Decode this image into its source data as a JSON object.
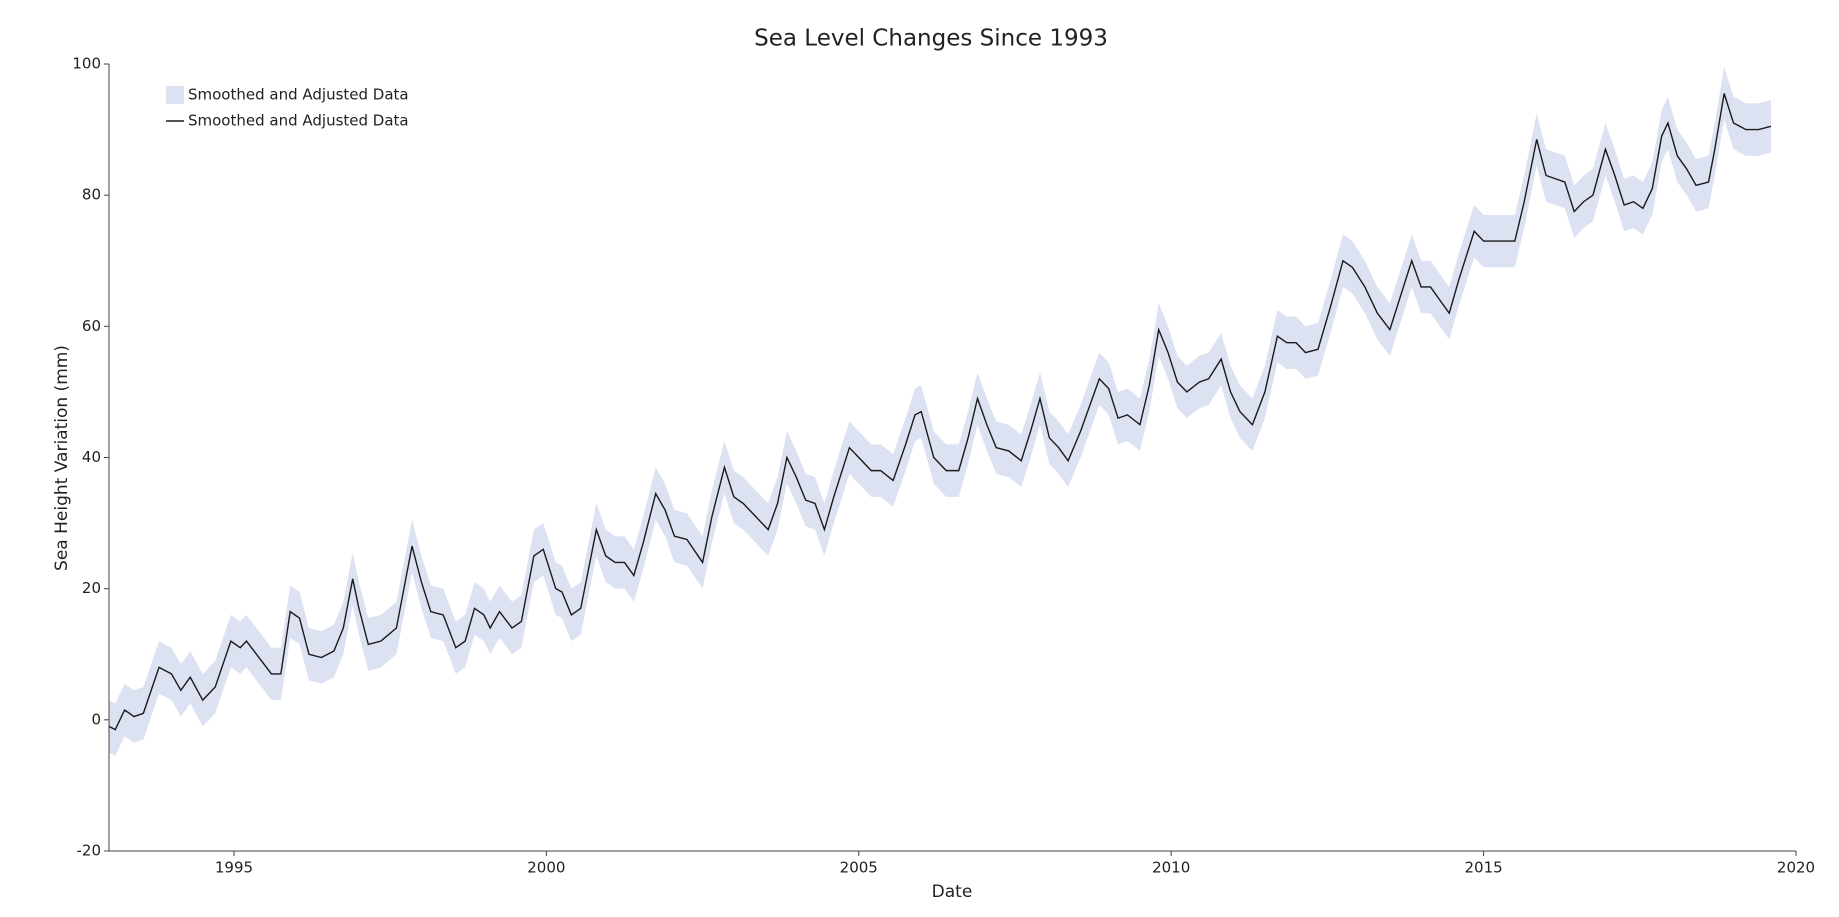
{
  "chart_data": {
    "type": "line",
    "title": "Sea Level Changes Since 1993",
    "x_label": "Date",
    "y_label": "Sea Height Variation (mm)",
    "xlim": [
      1993,
      2020
    ],
    "xticks": [
      1995,
      2000,
      2005,
      2010,
      2015,
      2020
    ],
    "ylim": [
      -20,
      100
    ],
    "yticks": [
      -20,
      0,
      20,
      40,
      60,
      80,
      100
    ],
    "legend": "upper-left",
    "grid": false,
    "x": [
      1993.0,
      1993.1,
      1993.25,
      1993.4,
      1993.55,
      1993.8,
      1994.0,
      1994.15,
      1994.3,
      1994.5,
      1994.7,
      1994.95,
      1995.1,
      1995.2,
      1995.4,
      1995.6,
      1995.75,
      1995.9,
      1996.05,
      1996.2,
      1996.4,
      1996.6,
      1996.75,
      1996.9,
      1997.0,
      1997.15,
      1997.35,
      1997.6,
      1997.85,
      1998.0,
      1998.15,
      1998.35,
      1998.55,
      1998.7,
      1998.85,
      1999.0,
      1999.1,
      1999.25,
      1999.45,
      1999.6,
      1999.8,
      1999.95,
      2000.15,
      2000.25,
      2000.4,
      2000.55,
      2000.8,
      2000.95,
      2001.1,
      2001.25,
      2001.4,
      2001.55,
      2001.75,
      2001.9,
      2002.05,
      2002.25,
      2002.5,
      2002.65,
      2002.85,
      2003.0,
      2003.15,
      2003.35,
      2003.55,
      2003.7,
      2003.85,
      2004.0,
      2004.15,
      2004.3,
      2004.45,
      2004.6,
      2004.85,
      2005.0,
      2005.2,
      2005.35,
      2005.55,
      2005.75,
      2005.9,
      2006.0,
      2006.2,
      2006.4,
      2006.6,
      2006.75,
      2006.9,
      2007.05,
      2007.2,
      2007.4,
      2007.6,
      2007.75,
      2007.9,
      2008.05,
      2008.2,
      2008.35,
      2008.55,
      2008.7,
      2008.85,
      2009.0,
      2009.15,
      2009.3,
      2009.5,
      2009.65,
      2009.8,
      2009.95,
      2010.1,
      2010.25,
      2010.45,
      2010.6,
      2010.8,
      2010.95,
      2011.1,
      2011.3,
      2011.5,
      2011.7,
      2011.85,
      2012.0,
      2012.15,
      2012.35,
      2012.55,
      2012.75,
      2012.9,
      2013.1,
      2013.3,
      2013.5,
      2013.65,
      2013.85,
      2014.0,
      2014.15,
      2014.3,
      2014.45,
      2014.6,
      2014.85,
      2015.0,
      2015.15,
      2015.3,
      2015.5,
      2015.65,
      2015.85,
      2016.0,
      2016.15,
      2016.3,
      2016.45,
      2016.6,
      2016.75,
      2016.95,
      2017.1,
      2017.25,
      2017.4,
      2017.55,
      2017.7,
      2017.85,
      2017.95,
      2018.1,
      2018.25,
      2018.4,
      2018.6,
      2018.7,
      2018.85,
      2019.0,
      2019.2,
      2019.4,
      2019.6
    ],
    "series": [
      {
        "name": "Smoothed and Adjusted Data",
        "color": "#dde2f2",
        "lower": [
          -5,
          -5.5,
          -2.5,
          -3.5,
          -3,
          4,
          3,
          0.5,
          2.5,
          -1,
          1,
          8,
          7,
          8,
          5.5,
          3,
          3,
          12.5,
          11.5,
          6,
          5.5,
          6.5,
          10,
          17.5,
          13,
          7.5,
          8,
          10,
          22.5,
          17,
          12.5,
          12,
          7,
          8,
          13,
          12,
          10,
          12.5,
          10,
          11,
          21,
          22,
          16,
          15.5,
          12,
          13,
          25,
          21,
          20,
          20,
          18,
          23,
          30.5,
          28,
          24,
          23.5,
          20,
          27,
          34.5,
          30,
          29,
          27,
          25,
          29,
          36,
          33,
          29.5,
          29,
          25,
          30,
          37.5,
          36,
          34,
          34,
          32.5,
          38,
          42.5,
          43,
          36,
          34,
          34,
          39,
          45,
          41,
          37.5,
          37,
          35.5,
          40,
          45,
          39,
          37.5,
          35.5,
          40,
          44,
          48,
          46.5,
          42,
          42.5,
          41,
          47,
          55.5,
          52,
          47.5,
          46,
          47.5,
          48,
          51,
          46,
          43,
          41,
          46,
          54.5,
          53.5,
          53.5,
          52,
          52.5,
          59,
          66,
          65,
          62,
          58,
          55.5,
          60,
          66,
          62,
          62,
          60,
          58,
          63,
          70.5,
          69,
          69,
          69,
          69,
          75,
          84.5,
          79,
          78.5,
          78,
          73.5,
          75,
          76,
          83,
          79,
          74.5,
          75,
          74,
          77,
          85,
          87,
          82,
          80,
          77.5,
          78,
          83,
          91.5,
          87,
          86,
          86,
          86.5
        ],
        "upper": [
          3,
          2.5,
          5.5,
          4.5,
          5,
          12,
          11,
          8.5,
          10.5,
          7,
          9,
          16,
          15,
          16,
          13.5,
          11,
          11,
          20.5,
          19.5,
          14,
          13.5,
          14.5,
          18,
          25.5,
          21,
          15.5,
          16,
          18,
          30.5,
          25,
          20.5,
          20,
          15,
          16,
          21,
          20,
          18,
          20.5,
          18,
          19,
          29,
          30,
          24,
          23.5,
          20,
          21,
          33,
          29,
          28,
          28,
          26,
          31,
          38.5,
          36,
          32,
          31.5,
          28,
          35,
          42.5,
          38,
          37,
          35,
          33,
          37,
          44,
          41,
          37.5,
          37,
          33,
          38,
          45.5,
          44,
          42,
          42,
          40.5,
          46,
          50.5,
          51,
          44,
          42,
          42,
          47,
          53,
          49,
          45.5,
          45,
          43.5,
          48,
          53,
          47,
          45.5,
          43.5,
          48,
          52,
          56,
          54.5,
          50,
          50.5,
          49,
          55,
          63.5,
          60,
          55.5,
          54,
          55.5,
          56,
          59,
          54,
          51,
          49,
          54,
          62.5,
          61.5,
          61.5,
          60,
          60.5,
          67,
          74,
          73,
          70,
          66,
          63.5,
          68,
          74,
          70,
          70,
          68,
          66,
          71,
          78.5,
          77,
          77,
          77,
          77,
          83,
          92.5,
          87,
          86.5,
          86,
          81.5,
          83,
          84,
          91,
          87,
          82.5,
          83,
          82,
          85,
          93,
          95,
          90,
          88,
          85.5,
          86,
          91,
          99.5,
          95,
          94,
          94,
          94.5
        ]
      },
      {
        "name": "Smoothed and Adjusted Data",
        "color": "#1a1a1a",
        "values": [
          -1,
          -1.5,
          1.5,
          0.5,
          1,
          8,
          7,
          4.5,
          6.5,
          3,
          5,
          12,
          11,
          12,
          9.5,
          7,
          7,
          16.5,
          15.5,
          10,
          9.5,
          10.5,
          14,
          21.5,
          17,
          11.5,
          12,
          14,
          26.5,
          21,
          16.5,
          16,
          11,
          12,
          17,
          16,
          14,
          16.5,
          14,
          15,
          25,
          26,
          20,
          19.5,
          16,
          17,
          29,
          25,
          24,
          24,
          22,
          27,
          34.5,
          32,
          28,
          27.5,
          24,
          31,
          38.5,
          34,
          33,
          31,
          29,
          33,
          40,
          37,
          33.5,
          33,
          29,
          34,
          41.5,
          40,
          38,
          38,
          36.5,
          42,
          46.5,
          47,
          40,
          38,
          38,
          43,
          49,
          45,
          41.5,
          41,
          39.5,
          44,
          49,
          43,
          41.5,
          39.5,
          44,
          48,
          52,
          50.5,
          46,
          46.5,
          45,
          51,
          59.5,
          56,
          51.5,
          50,
          51.5,
          52,
          55,
          50,
          47,
          45,
          50,
          58.5,
          57.5,
          57.5,
          56,
          56.5,
          63,
          70,
          69,
          66,
          62,
          59.5,
          64,
          70,
          66,
          66,
          64,
          62,
          67,
          74.5,
          73,
          73,
          73,
          73,
          79,
          88.5,
          83,
          82.5,
          82,
          77.5,
          79,
          80,
          87,
          83,
          78.5,
          79,
          78,
          81,
          89,
          91,
          86,
          84,
          81.5,
          82,
          87,
          95.5,
          91,
          90,
          90,
          90.5
        ]
      }
    ]
  }
}
